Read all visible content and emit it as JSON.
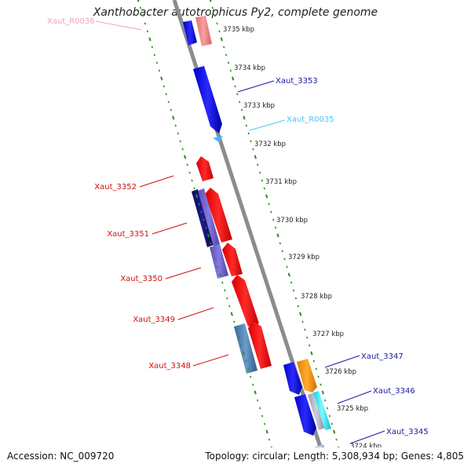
{
  "title": "Xanthobacter autotrophicus Py2, complete genome",
  "footer": {
    "accession": "Accession: NC_009720",
    "summary": "Topology: circular; Length: 5,308,934 bp; Genes: 4,805"
  },
  "colors": {
    "backbone": "#8c8c8c",
    "tick": "#2e8b22",
    "forward_gene": "#0000ff",
    "reverse_gene": "#ff0000",
    "rna": "#3fb8ff",
    "rna_pink": "#f08a8a",
    "label_forward": "#1a1aa0",
    "label_reverse": "#d01010",
    "label_rna": "#4fc3f7",
    "label_rna_pink": "#f0a0c0"
  },
  "kbp_ticks": [
    "3735 kbp",
    "3734 kbp",
    "3733 kbp",
    "3732 kbp",
    "3731 kbp",
    "3730 kbp",
    "3729 kbp",
    "3728 kbp",
    "3727 kbp",
    "3726 kbp",
    "3725 kbp",
    "3724 kbp"
  ],
  "labels": [
    {
      "text": "Xaut_R0036",
      "color": "#f0a0c0"
    },
    {
      "text": "Xaut_3353",
      "color": "#1a1aa0"
    },
    {
      "text": "Xaut_R0035",
      "color": "#4fc3f7"
    },
    {
      "text": "Xaut_3352",
      "color": "#d01010"
    },
    {
      "text": "Xaut_3351",
      "color": "#d01010"
    },
    {
      "text": "Xaut_3350",
      "color": "#d01010"
    },
    {
      "text": "Xaut_3349",
      "color": "#d01010"
    },
    {
      "text": "Xaut_3348",
      "color": "#d01010"
    },
    {
      "text": "Xaut_3347",
      "color": "#1a1aa0"
    },
    {
      "text": "Xaut_3346",
      "color": "#1a1aa0"
    },
    {
      "text": "Xaut_3345",
      "color": "#1a1aa0"
    }
  ]
}
